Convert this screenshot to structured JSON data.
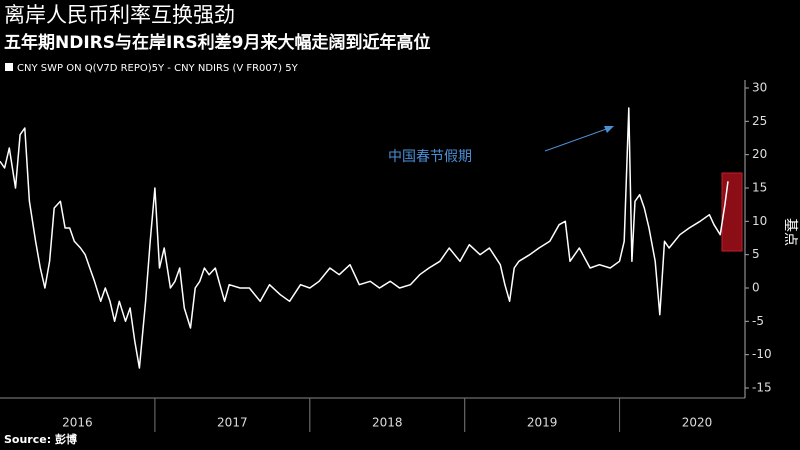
{
  "chart_data": {
    "type": "line",
    "title": "离岸人民币利率互换强劲",
    "subtitle": "五年期NDIRS与在岸IRS利差9月来大幅走阔到近年高位",
    "y_axis_label": "基点",
    "annotation": "中国春节假期",
    "source": "Source: 彭博",
    "x": [
      2016.0,
      2016.03,
      2016.06,
      2016.1,
      2016.13,
      2016.16,
      2016.19,
      2016.23,
      2016.26,
      2016.29,
      2016.32,
      2016.35,
      2016.39,
      2016.42,
      2016.45,
      2016.48,
      2016.52,
      2016.55,
      2016.58,
      2016.61,
      2016.65,
      2016.68,
      2016.71,
      2016.74,
      2016.77,
      2016.81,
      2016.84,
      2016.87,
      2016.9,
      2016.94,
      2016.97,
      2017.0,
      2017.03,
      2017.06,
      2017.1,
      2017.13,
      2017.16,
      2017.19,
      2017.23,
      2017.26,
      2017.29,
      2017.32,
      2017.35,
      2017.39,
      2017.42,
      2017.45,
      2017.48,
      2017.55,
      2017.61,
      2017.68,
      2017.74,
      2017.81,
      2017.87,
      2017.94,
      2018.0,
      2018.06,
      2018.13,
      2018.19,
      2018.26,
      2018.32,
      2018.39,
      2018.45,
      2018.52,
      2018.58,
      2018.65,
      2018.71,
      2018.77,
      2018.84,
      2018.9,
      2018.97,
      2019.03,
      2019.1,
      2019.16,
      2019.23,
      2019.26,
      2019.29,
      2019.32,
      2019.35,
      2019.42,
      2019.48,
      2019.55,
      2019.61,
      2019.65,
      2019.68,
      2019.74,
      2019.81,
      2019.87,
      2019.94,
      2020.0,
      2020.03,
      2020.06,
      2020.08,
      2020.1,
      2020.13,
      2020.16,
      2020.19,
      2020.23,
      2020.26,
      2020.29,
      2020.32,
      2020.39,
      2020.45,
      2020.52,
      2020.58,
      2020.61,
      2020.65,
      2020.68,
      2020.7
    ],
    "series": [
      {
        "name": "CNY SWP ON Q(V7D REPO)5Y - CNY NDIRS (V FR007) 5Y",
        "color": "#ffffff",
        "values": [
          19,
          18,
          21,
          15,
          23,
          24,
          13,
          7,
          3,
          0,
          4,
          12,
          13,
          9,
          9,
          7,
          6,
          5,
          3,
          1,
          -2,
          0,
          -2,
          -5,
          -2,
          -5,
          -3,
          -8,
          -12,
          -2,
          7,
          15,
          3,
          6,
          0,
          1,
          3,
          -3,
          -6,
          0,
          1,
          3,
          2,
          3,
          0.5,
          -2,
          0.5,
          0,
          0,
          -2,
          0.5,
          -1,
          -2,
          0.5,
          0,
          1,
          3,
          2,
          3.5,
          0.5,
          1,
          0,
          1,
          0,
          0.5,
          2,
          3,
          4,
          6,
          4,
          6.5,
          5,
          6,
          3.5,
          0.5,
          -2,
          3,
          4,
          5,
          6,
          7,
          9.5,
          10,
          4,
          6,
          3,
          3.5,
          3,
          4,
          7,
          27,
          4,
          13,
          14,
          12,
          9,
          4,
          -4,
          7,
          6,
          8,
          9,
          10,
          11,
          9.5,
          8,
          12.5,
          16
        ]
      }
    ],
    "xlim": [
      2016.0,
      2020.81
    ],
    "xticks": [
      {
        "value": 2016.5,
        "label": "2016"
      },
      {
        "value": 2017.5,
        "label": "2017"
      },
      {
        "value": 2018.5,
        "label": "2018"
      },
      {
        "value": 2019.5,
        "label": "2019"
      },
      {
        "value": 2020.5,
        "label": "2020"
      }
    ],
    "ylim": [
      -15,
      30
    ],
    "yticks": [
      30,
      25,
      20,
      15,
      10,
      5,
      0,
      -5,
      -10,
      -15
    ],
    "grid": false
  }
}
